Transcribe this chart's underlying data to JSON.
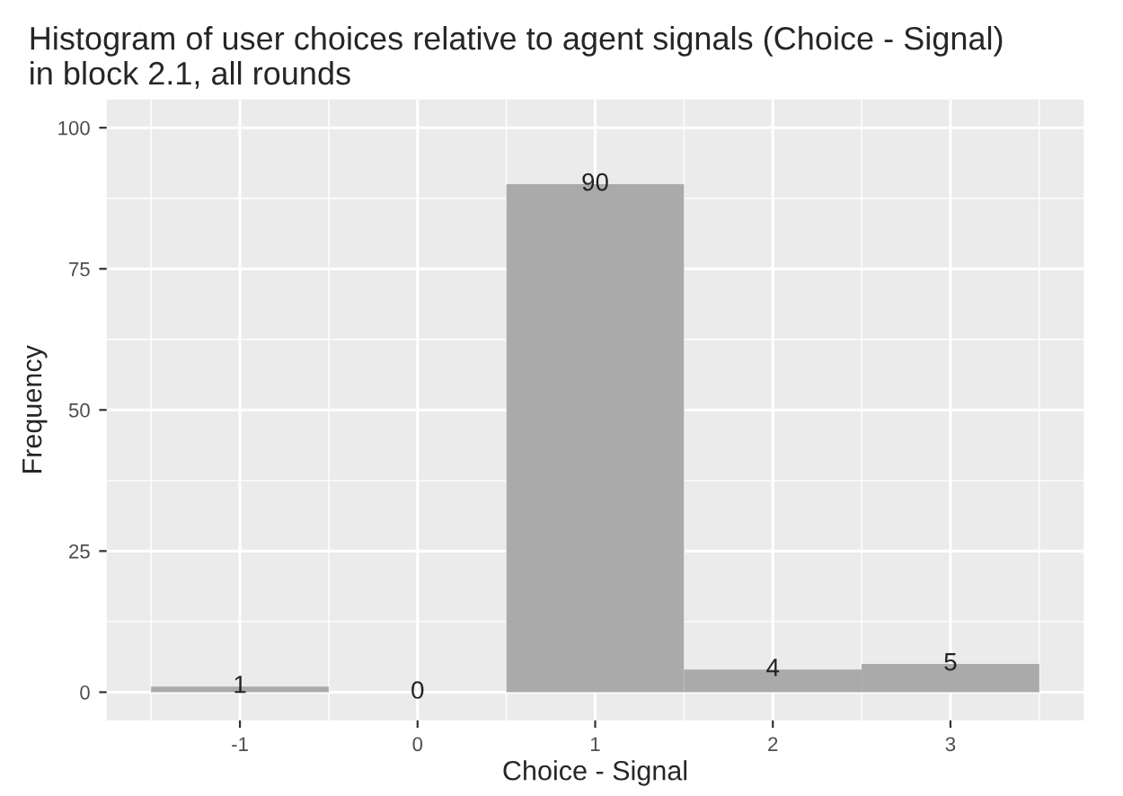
{
  "chart_data": {
    "type": "histogram",
    "title": "Histogram of user choices relative to agent signals (Choice - Signal)\nin block 2.1, all rounds",
    "xlabel": "Choice - Signal",
    "ylabel": "Frequency",
    "bins": [
      -1.5,
      -0.5,
      0.5,
      1.5,
      2.5,
      3.5
    ],
    "values": [
      1,
      0,
      90,
      4,
      5
    ],
    "color": "#aaaaaa",
    "data_labels": true,
    "xlim": [
      -1.75,
      3.75
    ],
    "xticks": [
      -1,
      0,
      1,
      2,
      3
    ],
    "ylim": [
      -5,
      105
    ],
    "yticks": [
      0,
      25,
      50,
      75,
      100
    ],
    "grid": true,
    "legend": false
  }
}
